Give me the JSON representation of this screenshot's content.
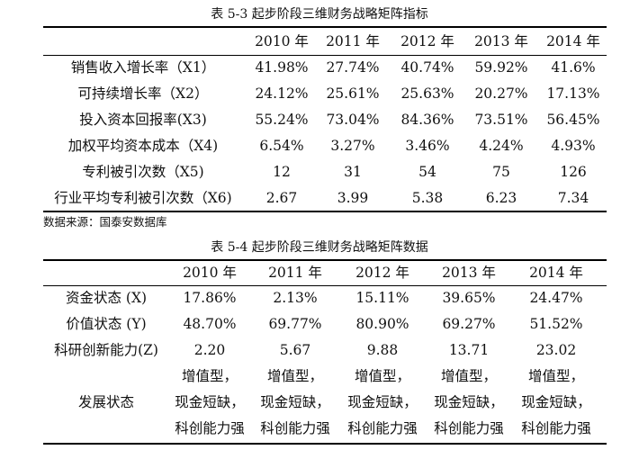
{
  "table1": {
    "caption": "表 5-3  起步阶段三维财务战略矩阵指标",
    "columns": [
      "2010 年",
      "2011 年",
      "2012 年",
      "2013 年",
      "2014 年"
    ],
    "rows": [
      {
        "label": "销售收入增长率（X1）",
        "values": [
          "41.98%",
          "27.74%",
          "40.74%",
          "59.92%",
          "41.6%"
        ]
      },
      {
        "label": "可持续增长率（X2）",
        "values": [
          "24.12%",
          "25.61%",
          "25.63%",
          "20.27%",
          "17.13%"
        ]
      },
      {
        "label": "投入资本回报率(X3)",
        "values": [
          "55.24%",
          "73.04%",
          "84.36%",
          "73.51%",
          "56.45%"
        ]
      },
      {
        "label": "加权平均资本成本（X4)",
        "values": [
          "6.54%",
          "3.27%",
          "3.46%",
          "4.24%",
          "4.93%"
        ]
      },
      {
        "label": "专利被引次数（X5)",
        "values": [
          "12",
          "31",
          "54",
          "75",
          "126"
        ]
      },
      {
        "label": "行业平均专利被引次数（X6)",
        "values": [
          "2.67",
          "3.99",
          "5.38",
          "6.23",
          "7.34"
        ]
      }
    ],
    "source": "数据来源：国泰安数据库"
  },
  "table2": {
    "caption": "表 5-4  起步阶段三维财务战略矩阵数据",
    "columns": [
      "2010 年",
      "2011 年",
      "2012 年",
      "2013 年",
      "2014 年"
    ],
    "rows": [
      {
        "label": "资金状态 (X)",
        "values": [
          "17.86%",
          "2.13%",
          "15.11%",
          "39.65%",
          "24.47%"
        ]
      },
      {
        "label": "价值状态 (Y)",
        "values": [
          "48.70%",
          "69.77%",
          "80.90%",
          "69.27%",
          "51.52%"
        ]
      },
      {
        "label": "科研创新能力(Z)",
        "values": [
          "2.20",
          "5.67",
          "9.88",
          "13.71",
          "23.02"
        ]
      }
    ],
    "status_label": "发展状态",
    "status_lines": [
      "增值型，",
      "现金短缺，",
      "科创能力强"
    ]
  }
}
